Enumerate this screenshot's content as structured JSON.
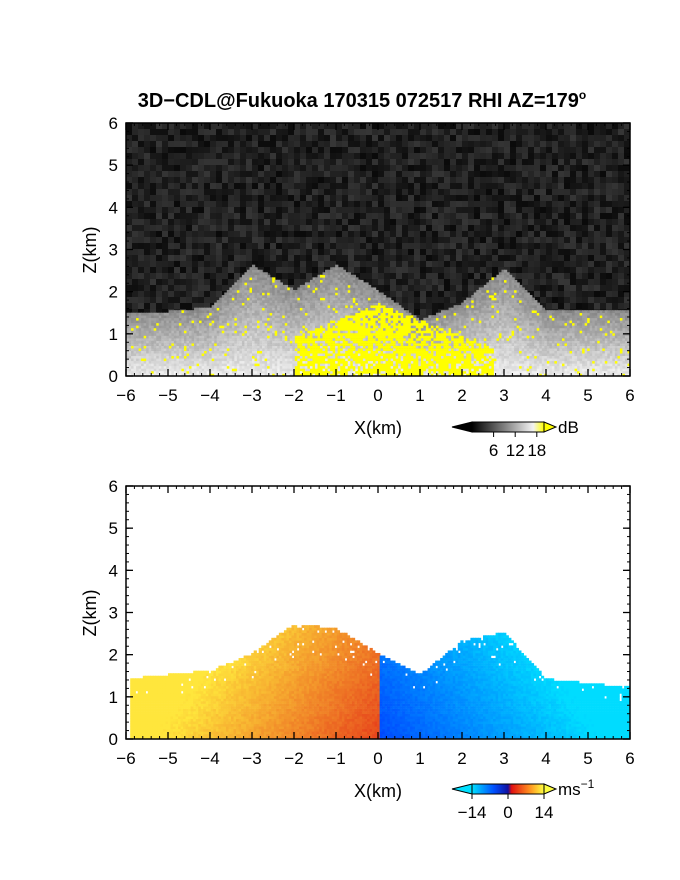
{
  "figure": {
    "title_main": "3D−CDL@Fukuoka 170315 072517 RHI AZ=179",
    "title_deg": "o"
  },
  "chart_data": [
    {
      "type": "heatmap",
      "panel": "reflectivity",
      "xlabel": "X(km)",
      "ylabel": "Z(km)",
      "xlim": [
        -6,
        6
      ],
      "ylim": [
        0,
        6
      ],
      "x_ticks": [
        -6,
        -5,
        -4,
        -3,
        -2,
        -1,
        0,
        1,
        2,
        3,
        4,
        5,
        6
      ],
      "y_ticks": [
        0,
        1,
        2,
        3,
        4,
        5,
        6
      ],
      "colorbar": {
        "unit": "dB",
        "ticks": [
          6,
          12,
          18
        ],
        "range": [
          0,
          20
        ],
        "colormap": "grayscale to yellow"
      },
      "background_level_db": 2,
      "envelope_top_km": [
        {
          "x": -6,
          "z": 1.45
        },
        {
          "x": -5,
          "z": 1.5
        },
        {
          "x": -4,
          "z": 1.6
        },
        {
          "x": -3,
          "z": 2.6
        },
        {
          "x": -2,
          "z": 2.0
        },
        {
          "x": -1,
          "z": 2.6
        },
        {
          "x": 0,
          "z": 2.0
        },
        {
          "x": 1,
          "z": 1.3
        },
        {
          "x": 2,
          "z": 1.7
        },
        {
          "x": 3,
          "z": 2.5
        },
        {
          "x": 4,
          "z": 1.5
        },
        {
          "x": 5,
          "z": 1.55
        },
        {
          "x": 6,
          "z": 1.5
        }
      ],
      "saturated_core": {
        "x_range": [
          -2,
          2.7
        ],
        "z_top": 1.4,
        "value_db": 20
      }
    },
    {
      "type": "heatmap",
      "panel": "doppler_velocity",
      "xlabel": "X(km)",
      "ylabel": "Z(km)",
      "xlim": [
        -6,
        6
      ],
      "ylim": [
        0,
        6
      ],
      "x_ticks": [
        -6,
        -5,
        -4,
        -3,
        -2,
        -1,
        0,
        1,
        2,
        3,
        4,
        5,
        6
      ],
      "y_ticks": [
        0,
        1,
        2,
        3,
        4,
        5,
        6
      ],
      "colorbar": {
        "unit": "ms",
        "unit_exp": "−1",
        "ticks": [
          -14,
          0,
          14
        ],
        "range": [
          -14,
          14
        ],
        "colormap": "cyan-blue-red-yellow"
      },
      "envelope_top_km": [
        {
          "x": -6,
          "z": 1.4
        },
        {
          "x": -4,
          "z": 1.6
        },
        {
          "x": -3,
          "z": 2.0
        },
        {
          "x": -2,
          "z": 2.7
        },
        {
          "x": -1,
          "z": 2.6
        },
        {
          "x": 0,
          "z": 2.0
        },
        {
          "x": 1,
          "z": 1.5
        },
        {
          "x": 2,
          "z": 2.3
        },
        {
          "x": 3,
          "z": 2.5
        },
        {
          "x": 4,
          "z": 1.4
        },
        {
          "x": 6,
          "z": 1.2
        }
      ],
      "velocity_sign": "positive for x<0 (away, warm colors), negative for x>0 (toward, cool colors)"
    }
  ]
}
